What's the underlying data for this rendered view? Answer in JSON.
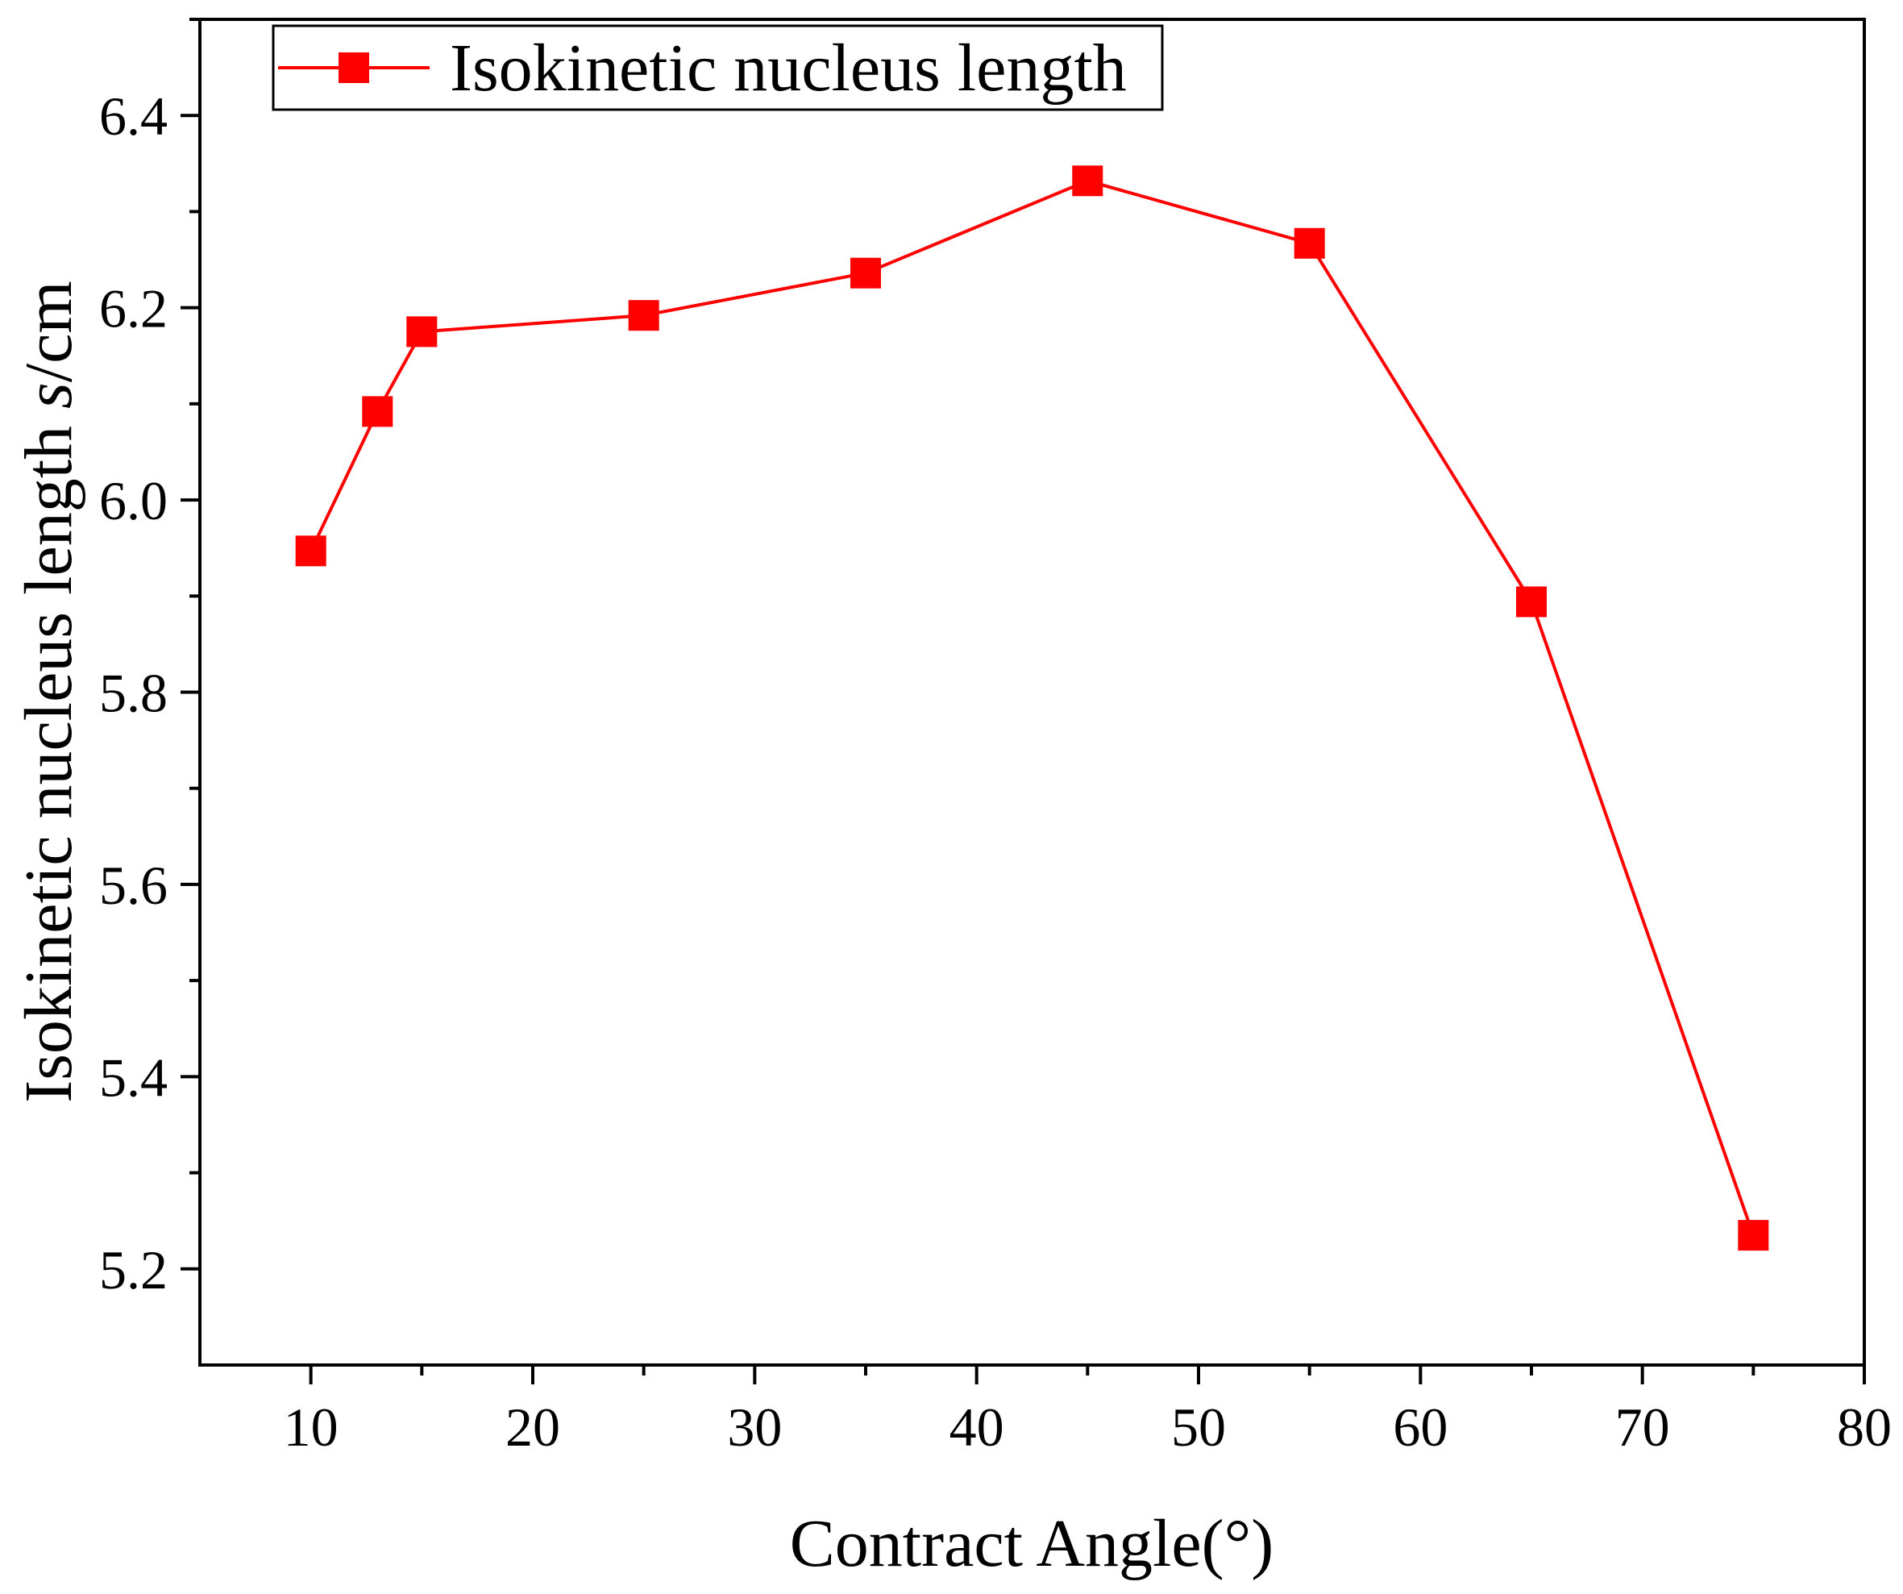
{
  "chart_data": {
    "type": "line",
    "title": "",
    "xlabel": "Contract Angle(°)",
    "ylabel_main": "Isokinetic nucleus length ",
    "ylabel_italic": "s",
    "ylabel_unit": "/cm",
    "xlim": [
      5,
      80
    ],
    "ylim": [
      5.1,
      6.5
    ],
    "xticks": [
      10,
      20,
      30,
      40,
      50,
      60,
      70,
      80
    ],
    "xtick_labels": [
      "10",
      "20",
      "30",
      "40",
      "50",
      "60",
      "70",
      "80"
    ],
    "yticks": [
      5.2,
      5.4,
      5.6,
      5.8,
      6.0,
      6.2,
      6.4
    ],
    "ytick_labels": [
      "5.2",
      "5.4",
      "5.6",
      "5.8",
      "6.0",
      "6.2",
      "6.4"
    ],
    "grid": false,
    "legend_position": "top-left",
    "series": [
      {
        "name": "Isokinetic nucleus length",
        "color": "#ff0000",
        "marker": "square",
        "x": [
          10,
          13,
          15,
          25,
          35,
          45,
          55,
          65,
          75
        ],
        "y": [
          5.947,
          6.092,
          6.175,
          6.192,
          6.236,
          6.332,
          6.267,
          5.894,
          5.235
        ]
      }
    ]
  }
}
